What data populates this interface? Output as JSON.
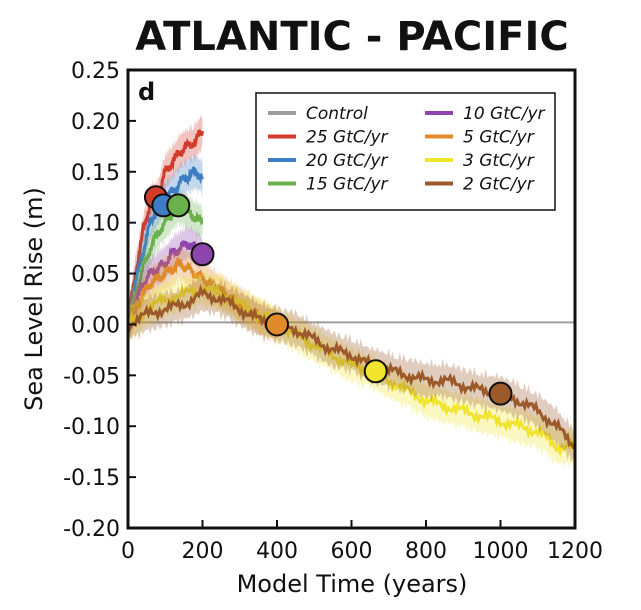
{
  "chart_data": {
    "type": "line",
    "title": "ATLANTIC - PACIFIC",
    "panel_label": "d",
    "xlabel": "Model Time (years)",
    "ylabel": "Sea Level Rise (m)",
    "xlim": [
      0,
      1200
    ],
    "ylim": [
      -0.2,
      0.25
    ],
    "xticks": [
      0,
      200,
      400,
      600,
      800,
      1000,
      1200
    ],
    "xtick_labels": [
      "0",
      "200",
      "400",
      "600",
      "800",
      "1000",
      "1200"
    ],
    "yticks": [
      0.25,
      0.2,
      0.15,
      0.1,
      0.05,
      0.0,
      -0.05,
      -0.1,
      -0.15,
      -0.2
    ],
    "ytick_labels": [
      "0.25",
      "0.20",
      "0.15",
      "0.10",
      "0.05",
      "0.00",
      "-0.05",
      "-0.10",
      "-0.15",
      "-0.20"
    ],
    "grid": false,
    "legend_position": "top-right",
    "series": [
      {
        "name": "Control",
        "color": "#9e9e9e",
        "shade": false,
        "x": [
          0,
          1200
        ],
        "y": [
          0.002,
          0.002
        ],
        "marker": null
      },
      {
        "name": "25 GtC/yr",
        "color": "#d23a2a",
        "shade": true,
        "x": [
          0,
          20,
          40,
          60,
          80,
          100,
          120,
          140,
          160,
          180,
          200
        ],
        "y": [
          0.0,
          0.05,
          0.09,
          0.12,
          0.125,
          0.15,
          0.16,
          0.17,
          0.175,
          0.18,
          0.19
        ],
        "marker": {
          "x": 75,
          "y": 0.125
        }
      },
      {
        "name": "20 GtC/yr",
        "color": "#3d7dc4",
        "shade": true,
        "x": [
          0,
          20,
          40,
          60,
          80,
          100,
          120,
          140,
          160,
          180,
          200
        ],
        "y": [
          0.0,
          0.04,
          0.07,
          0.1,
          0.115,
          0.125,
          0.13,
          0.14,
          0.145,
          0.15,
          0.145
        ],
        "marker": {
          "x": 95,
          "y": 0.117
        }
      },
      {
        "name": "15 GtC/yr",
        "color": "#6ab04c",
        "shade": true,
        "x": [
          0,
          20,
          40,
          60,
          80,
          100,
          120,
          140,
          160,
          180,
          200
        ],
        "y": [
          0.0,
          0.03,
          0.055,
          0.075,
          0.09,
          0.1,
          0.11,
          0.115,
          0.11,
          0.105,
          0.1
        ],
        "marker": {
          "x": 135,
          "y": 0.117
        }
      },
      {
        "name": "10 GtC/yr",
        "color": "#8e44ad",
        "shade": true,
        "x": [
          0,
          20,
          40,
          60,
          80,
          100,
          120,
          140,
          160,
          180,
          200
        ],
        "y": [
          0.0,
          0.02,
          0.04,
          0.05,
          0.055,
          0.06,
          0.07,
          0.075,
          0.08,
          0.075,
          0.07
        ],
        "marker": {
          "x": 200,
          "y": 0.069
        }
      },
      {
        "name": "5 GtC/yr",
        "color": "#e08a2c",
        "shade": true,
        "x": [
          0,
          20,
          40,
          60,
          80,
          100,
          120,
          140,
          160,
          180,
          200,
          220,
          240,
          260,
          280,
          300,
          320,
          340,
          360,
          380,
          400
        ],
        "y": [
          0.0,
          0.015,
          0.03,
          0.04,
          0.045,
          0.05,
          0.055,
          0.06,
          0.055,
          0.05,
          0.045,
          0.04,
          0.035,
          0.03,
          0.025,
          0.02,
          0.015,
          0.01,
          0.005,
          0.002,
          0.0
        ],
        "marker": {
          "x": 400,
          "y": 0.0
        }
      },
      {
        "name": "3 GtC/yr",
        "color": "#f0e42f",
        "shade": true,
        "x": [
          0,
          50,
          100,
          150,
          200,
          250,
          300,
          350,
          400,
          450,
          500,
          550,
          600,
          650,
          700,
          750,
          800,
          850,
          900,
          950,
          1000,
          1050,
          1100,
          1150,
          1200
        ],
        "y": [
          0.0,
          0.015,
          0.025,
          0.03,
          0.035,
          0.03,
          0.02,
          0.01,
          0.0,
          -0.01,
          -0.02,
          -0.03,
          -0.04,
          -0.046,
          -0.055,
          -0.065,
          -0.075,
          -0.08,
          -0.085,
          -0.09,
          -0.095,
          -0.1,
          -0.105,
          -0.12,
          -0.12
        ],
        "marker": {
          "x": 665,
          "y": -0.046
        }
      },
      {
        "name": "2 GtC/yr",
        "color": "#9c5a2a",
        "shade": true,
        "x": [
          0,
          50,
          100,
          150,
          200,
          250,
          300,
          350,
          400,
          450,
          500,
          550,
          600,
          650,
          700,
          750,
          800,
          850,
          900,
          950,
          1000,
          1050,
          1100,
          1150,
          1200
        ],
        "y": [
          0.0,
          0.01,
          0.015,
          0.02,
          0.03,
          0.025,
          0.015,
          0.005,
          0.0,
          -0.005,
          -0.015,
          -0.025,
          -0.03,
          -0.04,
          -0.045,
          -0.05,
          -0.055,
          -0.055,
          -0.06,
          -0.065,
          -0.068,
          -0.075,
          -0.085,
          -0.1,
          -0.12
        ],
        "marker": {
          "x": 1000,
          "y": -0.068
        }
      }
    ]
  }
}
